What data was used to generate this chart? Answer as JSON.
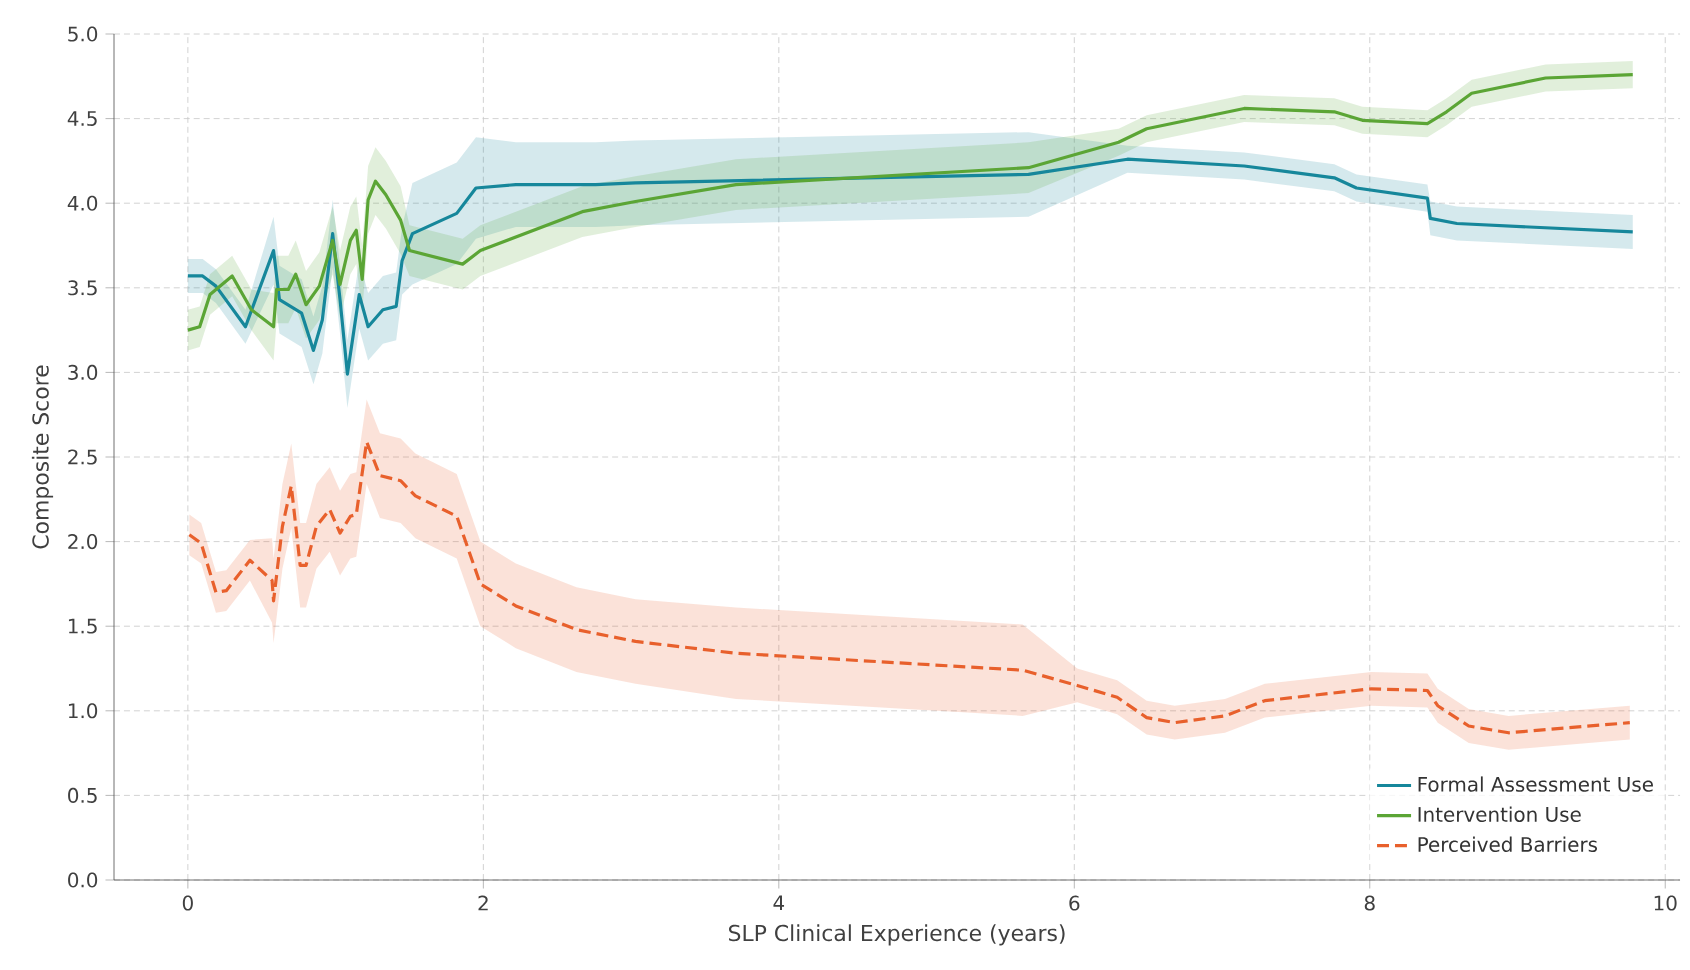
{
  "chart_data": {
    "type": "line",
    "xlabel": "SLP Clinical Experience (years)",
    "ylabel": "Composite Score",
    "xlim": [
      -0.5,
      10.1
    ],
    "ylim": [
      0,
      5
    ],
    "xticks": [
      0,
      2,
      4,
      6,
      8,
      10
    ],
    "yticks": [
      {
        "value": 0,
        "label": "0.0"
      },
      {
        "value": 0.5,
        "label": "0.5"
      },
      {
        "value": 1,
        "label": "1.0"
      },
      {
        "value": 1.5,
        "label": "1.5"
      },
      {
        "value": 2,
        "label": "2.0"
      },
      {
        "value": 2.5,
        "label": "2.5"
      },
      {
        "value": 3,
        "label": "3.0"
      },
      {
        "value": 3.5,
        "label": "3.5"
      },
      {
        "value": 4,
        "label": "4.0"
      },
      {
        "value": 4.5,
        "label": "4.5"
      },
      {
        "value": 5,
        "label": "5.0"
      }
    ],
    "grid": true,
    "legend": "bottom right",
    "series": [
      {
        "name": "Formal Assessment Use",
        "color": "#16879b",
        "line_style": "solid",
        "x": [
          0,
          0.1,
          0.19,
          0.39,
          0.58,
          0.62,
          0.77,
          0.85,
          0.91,
          0.98,
          1.03,
          1.08,
          1.16,
          1.22,
          1.32,
          1.41,
          1.45,
          1.52,
          1.82,
          1.95,
          2.22,
          2.76,
          3.03,
          5.69,
          6.36,
          7.15,
          7.76,
          7.91,
          8.39,
          8.41,
          8.59,
          9.78
        ],
        "values": [
          3.57,
          3.57,
          3.51,
          3.27,
          3.72,
          3.43,
          3.35,
          3.13,
          3.31,
          3.82,
          3.43,
          2.99,
          3.46,
          3.27,
          3.37,
          3.39,
          3.66,
          3.82,
          3.94,
          4.09,
          4.11,
          4.11,
          4.12,
          4.17,
          4.26,
          4.22,
          4.15,
          4.09,
          4.03,
          3.91,
          3.88,
          3.83
        ],
        "lower": [
          3.47,
          3.47,
          3.41,
          3.17,
          3.52,
          3.23,
          3.15,
          2.93,
          3.11,
          3.62,
          3.23,
          2.79,
          3.26,
          3.07,
          3.17,
          3.19,
          3.46,
          3.52,
          3.64,
          3.79,
          3.86,
          3.86,
          3.87,
          3.92,
          4.18,
          4.14,
          4.07,
          4.01,
          3.95,
          3.81,
          3.78,
          3.73
        ],
        "upper": [
          3.67,
          3.67,
          3.61,
          3.37,
          3.92,
          3.63,
          3.55,
          3.33,
          3.51,
          4.02,
          3.63,
          3.19,
          3.66,
          3.47,
          3.57,
          3.59,
          3.86,
          4.12,
          4.24,
          4.39,
          4.36,
          4.36,
          4.37,
          4.42,
          4.34,
          4.3,
          4.23,
          4.17,
          4.11,
          4.01,
          3.98,
          3.93
        ]
      },
      {
        "name": "Intervention Use",
        "color": "#5ba535",
        "line_style": "solid",
        "x": [
          0,
          0.08,
          0.15,
          0.3,
          0.43,
          0.58,
          0.6,
          0.68,
          0.73,
          0.8,
          0.89,
          0.98,
          1.03,
          1.1,
          1.14,
          1.18,
          1.22,
          1.27,
          1.34,
          1.44,
          1.5,
          1.86,
          1.98,
          2.67,
          3.03,
          3.71,
          5.69,
          6.3,
          6.49,
          7.15,
          7.76,
          7.95,
          8.39,
          8.52,
          8.69,
          9.19,
          9.78
        ],
        "values": [
          3.25,
          3.27,
          3.46,
          3.57,
          3.37,
          3.27,
          3.49,
          3.49,
          3.58,
          3.4,
          3.51,
          3.78,
          3.52,
          3.78,
          3.84,
          3.55,
          4.02,
          4.13,
          4.05,
          3.9,
          3.72,
          3.64,
          3.72,
          3.95,
          4.01,
          4.11,
          4.21,
          4.36,
          4.44,
          4.56,
          4.54,
          4.49,
          4.47,
          4.54,
          4.65,
          4.74,
          4.76
        ],
        "lower": [
          3.13,
          3.15,
          3.34,
          3.45,
          3.25,
          3.07,
          3.29,
          3.29,
          3.38,
          3.2,
          3.31,
          3.58,
          3.32,
          3.58,
          3.64,
          3.35,
          3.82,
          3.93,
          3.85,
          3.7,
          3.57,
          3.49,
          3.57,
          3.8,
          3.86,
          3.96,
          4.06,
          4.28,
          4.36,
          4.48,
          4.46,
          4.41,
          4.39,
          4.46,
          4.57,
          4.66,
          4.68
        ],
        "upper": [
          3.37,
          3.39,
          3.58,
          3.69,
          3.49,
          3.47,
          3.69,
          3.69,
          3.78,
          3.6,
          3.71,
          3.98,
          3.72,
          3.98,
          4.04,
          3.75,
          4.22,
          4.33,
          4.25,
          4.1,
          3.87,
          3.79,
          3.87,
          4.1,
          4.16,
          4.26,
          4.36,
          4.44,
          4.52,
          4.64,
          4.62,
          4.57,
          4.55,
          4.62,
          4.73,
          4.82,
          4.84
        ]
      },
      {
        "name": "Perceived Barriers",
        "color": "#e8602c",
        "line_style": "dashed",
        "x": [
          0.01,
          0.09,
          0.19,
          0.26,
          0.42,
          0.57,
          0.58,
          0.64,
          0.7,
          0.76,
          0.8,
          0.87,
          0.96,
          1.03,
          1.1,
          1.14,
          1.21,
          1.3,
          1.44,
          1.54,
          1.82,
          1.98,
          2.22,
          2.63,
          3.03,
          3.71,
          5.65,
          6.02,
          6.29,
          6.49,
          6.68,
          7.02,
          7.29,
          8.01,
          8.39,
          8.46,
          8.67,
          8.94,
          9.76
        ],
        "values": [
          2.04,
          1.99,
          1.7,
          1.71,
          1.89,
          1.77,
          1.65,
          2.09,
          2.33,
          1.86,
          1.86,
          2.09,
          2.19,
          2.05,
          2.15,
          2.16,
          2.59,
          2.39,
          2.36,
          2.27,
          2.15,
          1.75,
          1.62,
          1.48,
          1.41,
          1.34,
          1.24,
          1.15,
          1.08,
          0.96,
          0.93,
          0.97,
          1.06,
          1.13,
          1.12,
          1.03,
          0.91,
          0.87,
          0.93
        ],
        "lower": [
          1.92,
          1.87,
          1.58,
          1.59,
          1.77,
          1.52,
          1.4,
          1.84,
          2.08,
          1.61,
          1.61,
          1.84,
          1.94,
          1.8,
          1.9,
          1.91,
          2.34,
          2.14,
          2.11,
          2.02,
          1.9,
          1.5,
          1.37,
          1.23,
          1.16,
          1.07,
          0.97,
          1.05,
          0.98,
          0.86,
          0.83,
          0.87,
          0.96,
          1.03,
          1.02,
          0.93,
          0.81,
          0.77,
          0.83
        ],
        "upper": [
          2.16,
          2.11,
          1.82,
          1.83,
          2.01,
          2.02,
          1.9,
          2.34,
          2.58,
          2.11,
          2.11,
          2.34,
          2.44,
          2.3,
          2.4,
          2.41,
          2.84,
          2.64,
          2.61,
          2.52,
          2.4,
          2.0,
          1.87,
          1.73,
          1.66,
          1.61,
          1.51,
          1.25,
          1.18,
          1.06,
          1.03,
          1.07,
          1.16,
          1.23,
          1.22,
          1.13,
          1.01,
          0.97,
          1.03
        ]
      }
    ]
  }
}
